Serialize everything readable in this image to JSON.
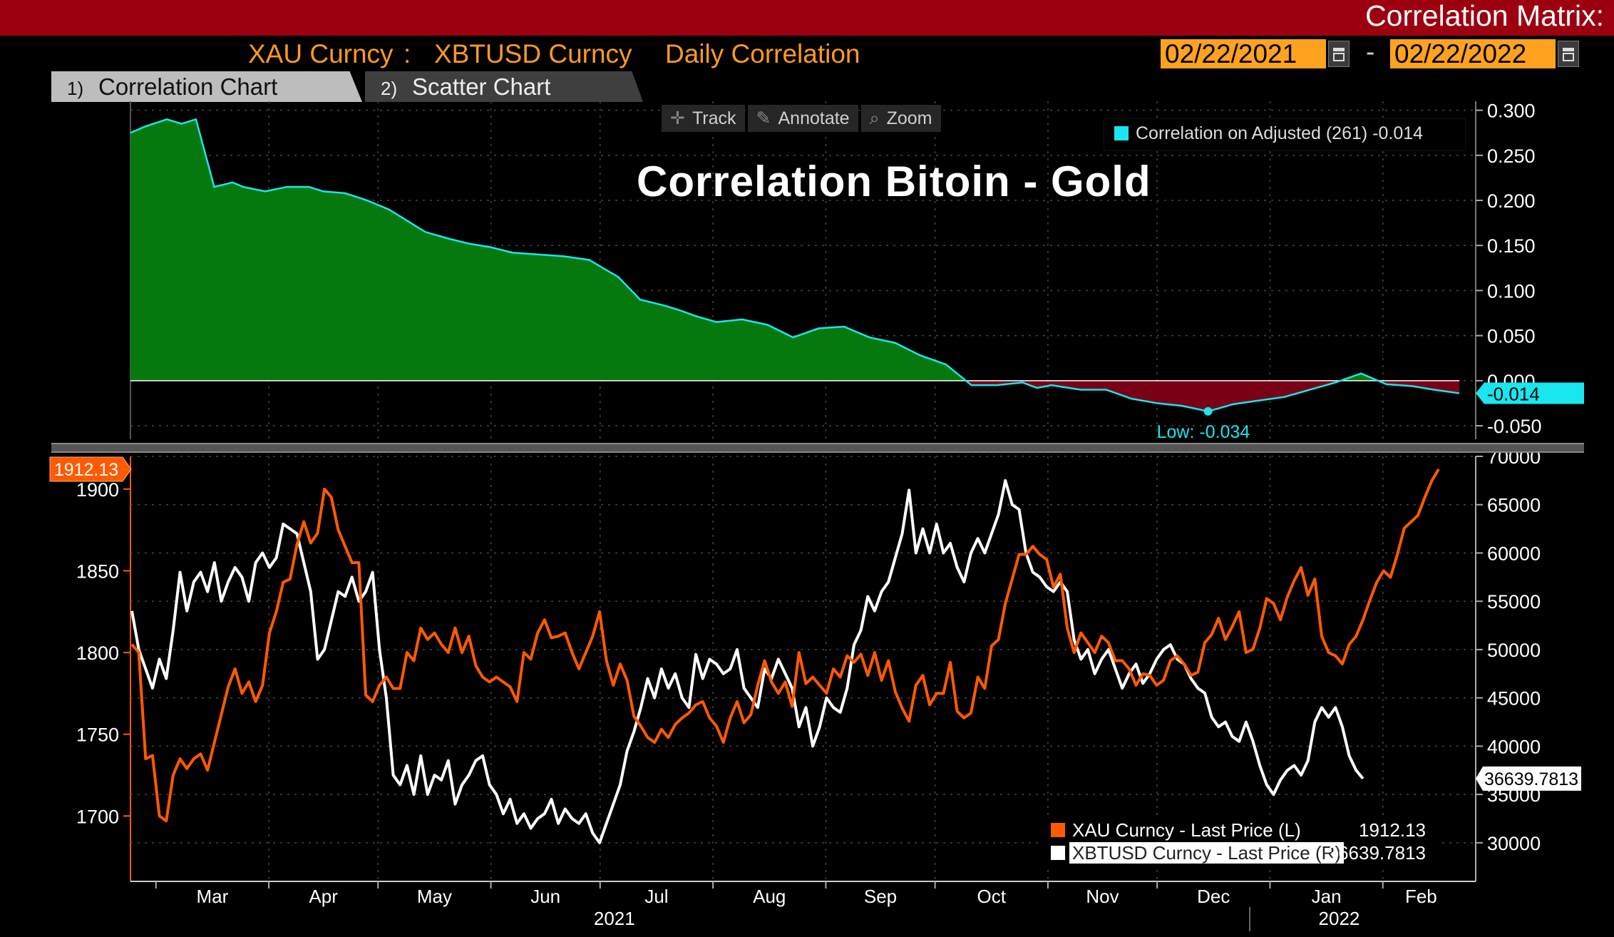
{
  "header": {
    "page_title": "Correlation Matrix:",
    "security1": "XAU Curncy",
    "separator": ":",
    "security2": "XBTUSD Curncy",
    "correlation_type": "Daily Correlation",
    "start_date": "02/22/2021",
    "date_separator": "-",
    "end_date": "02/22/2022",
    "calendar_icon": "calendar-icon"
  },
  "tabs": [
    {
      "num": "1)",
      "label": "Correlation Chart",
      "active": true
    },
    {
      "num": "2)",
      "label": "Scatter Chart",
      "active": false
    }
  ],
  "toolbar": {
    "track": "Track",
    "annotate": "Annotate",
    "zoom": "Zoom",
    "track_icon": "crosshair-icon",
    "annotate_icon": "pencil-icon",
    "zoom_icon": "magnifier-icon"
  },
  "colors": {
    "header_bar": "#9c0010",
    "accent_orange": "#ff9a1f",
    "positive_fill": "#05780e",
    "negative_fill": "#7a0016",
    "correlation_line": "#19e6ee",
    "gold_line": "#ff5a00",
    "btc_line": "#ffffff"
  },
  "chart_data": [
    {
      "type": "area",
      "title": "Correlation Bitoin - Gold",
      "legend": "Correlation on Adjusted (261) -0.014",
      "legend_position": "top-right",
      "x_start": "2021-02-22",
      "x_end": "2022-02-22",
      "series": [
        {
          "name": "Correlation on Adjusted (261)",
          "x": [
            "2021-02-22",
            "2021-02-26",
            "2021-03-04",
            "2021-03-08",
            "2021-03-12",
            "2021-03-17",
            "2021-03-22",
            "2021-03-25",
            "2021-03-31",
            "2021-04-06",
            "2021-04-12",
            "2021-04-16",
            "2021-04-22",
            "2021-04-28",
            "2021-05-04",
            "2021-05-10",
            "2021-05-14",
            "2021-05-20",
            "2021-05-26",
            "2021-06-01",
            "2021-06-07",
            "2021-06-14",
            "2021-06-21",
            "2021-06-28",
            "2021-07-06",
            "2021-07-12",
            "2021-07-19",
            "2021-07-23",
            "2021-07-27",
            "2021-08-02",
            "2021-08-09",
            "2021-08-16",
            "2021-08-23",
            "2021-08-30",
            "2021-09-06",
            "2021-09-13",
            "2021-09-20",
            "2021-09-27",
            "2021-10-04",
            "2021-10-11",
            "2021-10-18",
            "2021-10-25",
            "2021-10-29",
            "2021-11-02",
            "2021-11-10",
            "2021-11-17",
            "2021-11-24",
            "2021-12-01",
            "2021-12-08",
            "2021-12-15",
            "2021-12-22",
            "2021-12-29",
            "2022-01-05",
            "2022-01-12",
            "2022-01-19",
            "2022-01-26",
            "2022-02-02",
            "2022-02-09",
            "2022-02-15",
            "2022-02-22"
          ],
          "values": [
            0.275,
            0.282,
            0.29,
            0.285,
            0.29,
            0.215,
            0.22,
            0.215,
            0.21,
            0.215,
            0.215,
            0.21,
            0.208,
            0.2,
            0.19,
            0.175,
            0.165,
            0.158,
            0.152,
            0.148,
            0.142,
            0.14,
            0.138,
            0.134,
            0.115,
            0.09,
            0.083,
            0.078,
            0.072,
            0.065,
            0.068,
            0.062,
            0.048,
            0.058,
            0.06,
            0.048,
            0.042,
            0.028,
            0.018,
            -0.005,
            -0.005,
            -0.002,
            -0.008,
            -0.005,
            -0.01,
            -0.01,
            -0.02,
            -0.025,
            -0.028,
            -0.034,
            -0.026,
            -0.022,
            -0.018,
            -0.01,
            -0.002,
            0.008,
            -0.004,
            -0.006,
            -0.01,
            -0.014
          ]
        }
      ],
      "last_value_label": "-0.014",
      "low_label": "Low: -0.034",
      "low_value": -0.034,
      "ylim": [
        -0.065,
        0.31
      ],
      "y_ticks": [
        "0.300",
        "0.250",
        "0.200",
        "0.150",
        "0.100",
        "0.050",
        "0.000",
        "-0.050"
      ],
      "y_axis_position": "right"
    },
    {
      "type": "line",
      "x_start": "2021-02-22",
      "x_end": "2022-02-22",
      "x_ticks": [
        "Mar",
        "Apr",
        "May",
        "Jun",
        "Jul",
        "Aug",
        "Sep",
        "Oct",
        "Nov",
        "Dec",
        "Jan",
        "Feb"
      ],
      "years": [
        "2021",
        "2022"
      ],
      "legend_position": "bottom-right",
      "series": [
        {
          "name": "XAU Curncy - Last Price (L)",
          "axis": "left",
          "last_value": "1912.13",
          "values": [
            1805,
            1800,
            1735,
            1737,
            1700,
            1697,
            1725,
            1735,
            1729,
            1735,
            1738,
            1728,
            1745,
            1762,
            1779,
            1790,
            1775,
            1782,
            1770,
            1780,
            1812,
            1825,
            1843,
            1845,
            1866,
            1880,
            1867,
            1873,
            1900,
            1895,
            1875,
            1865,
            1855,
            1855,
            1774,
            1770,
            1780,
            1785,
            1778,
            1778,
            1800,
            1795,
            1815,
            1808,
            1812,
            1805,
            1800,
            1815,
            1800,
            1810,
            1792,
            1785,
            1782,
            1785,
            1782,
            1779,
            1770,
            1800,
            1796,
            1812,
            1820,
            1809,
            1810,
            1812,
            1800,
            1790,
            1800,
            1810,
            1825,
            1795,
            1780,
            1793,
            1783,
            1761,
            1755,
            1748,
            1745,
            1753,
            1748,
            1756,
            1760,
            1763,
            1768,
            1770,
            1760,
            1755,
            1745,
            1760,
            1770,
            1757,
            1762,
            1780,
            1795,
            1782,
            1775,
            1782,
            1767,
            1800,
            1781,
            1785,
            1780,
            1775,
            1790,
            1785,
            1798,
            1794,
            1799,
            1786,
            1800,
            1783,
            1795,
            1776,
            1766,
            1758,
            1780,
            1786,
            1768,
            1775,
            1775,
            1794,
            1764,
            1760,
            1763,
            1785,
            1778,
            1804,
            1808,
            1830,
            1845,
            1860,
            1860,
            1865,
            1860,
            1857,
            1840,
            1848,
            1815,
            1800,
            1812,
            1806,
            1800,
            1810,
            1806,
            1795,
            1795,
            1790,
            1780,
            1787,
            1786,
            1780,
            1783,
            1795,
            1798,
            1793,
            1786,
            1788,
            1806,
            1811,
            1821,
            1808,
            1816,
            1825,
            1800,
            1802,
            1815,
            1833,
            1830,
            1820,
            1834,
            1844,
            1852,
            1835,
            1845,
            1810,
            1800,
            1798,
            1793,
            1805,
            1810,
            1820,
            1832,
            1843,
            1850,
            1846,
            1860,
            1876,
            1880,
            1884,
            1895,
            1905,
            1912.13
          ]
        },
        {
          "name": "XBTUSD Curncy - Last Price (R)",
          "axis": "right",
          "last_value": "36639.7813",
          "values": [
            54000,
            50000,
            48000,
            46000,
            49000,
            47000,
            52000,
            58000,
            54000,
            57000,
            58000,
            56000,
            59000,
            55000,
            57000,
            58500,
            57500,
            55000,
            59000,
            60000,
            58500,
            59500,
            63000,
            62500,
            62000,
            59000,
            56000,
            49000,
            50000,
            53000,
            56000,
            55500,
            57500,
            55000,
            56000,
            58000,
            50000,
            45000,
            37000,
            36000,
            38000,
            35000,
            39000,
            35000,
            37000,
            36500,
            38500,
            34000,
            36000,
            37000,
            38500,
            39000,
            36000,
            35000,
            33000,
            34500,
            32000,
            33000,
            31500,
            32500,
            33000,
            34500,
            32000,
            33500,
            32500,
            32000,
            33000,
            31000,
            30000,
            32000,
            34000,
            36000,
            39500,
            41500,
            44000,
            47000,
            45000,
            48000,
            46000,
            47500,
            45000,
            44000,
            49500,
            47000,
            49000,
            48500,
            47500,
            48000,
            50000,
            46000,
            45000,
            44000,
            48000,
            47000,
            49000,
            47500,
            46000,
            42000,
            44000,
            40000,
            42000,
            45000,
            44000,
            43500,
            46000,
            50500,
            52000,
            55500,
            54000,
            56000,
            57000,
            59500,
            62000,
            66500,
            60000,
            62500,
            60000,
            63000,
            60000,
            61000,
            58500,
            57000,
            60000,
            61500,
            60000,
            62000,
            64000,
            67500,
            65000,
            64500,
            60000,
            58000,
            57500,
            56500,
            56000,
            57000,
            56000,
            51000,
            49000,
            50000,
            47500,
            49000,
            50000,
            48000,
            46000,
            47500,
            48500,
            46500,
            47500,
            49000,
            50000,
            50500,
            49000,
            48500,
            47000,
            46000,
            45500,
            43000,
            42000,
            42500,
            41000,
            40500,
            42500,
            40500,
            38000,
            36000,
            35000,
            36500,
            37500,
            38000,
            37000,
            38500,
            42500,
            44000,
            43000,
            44000,
            42000,
            39000,
            37500,
            36639.7813
          ]
        }
      ],
      "left_ylim": [
        1660,
        1920
      ],
      "right_ylim": [
        26000,
        70000
      ],
      "left_ticks": [
        "1900",
        "1850",
        "1800",
        "1750",
        "1700"
      ],
      "right_ticks": [
        "70000",
        "65000",
        "60000",
        "55000",
        "50000",
        "45000",
        "40000",
        "35000",
        "30000"
      ]
    }
  ]
}
